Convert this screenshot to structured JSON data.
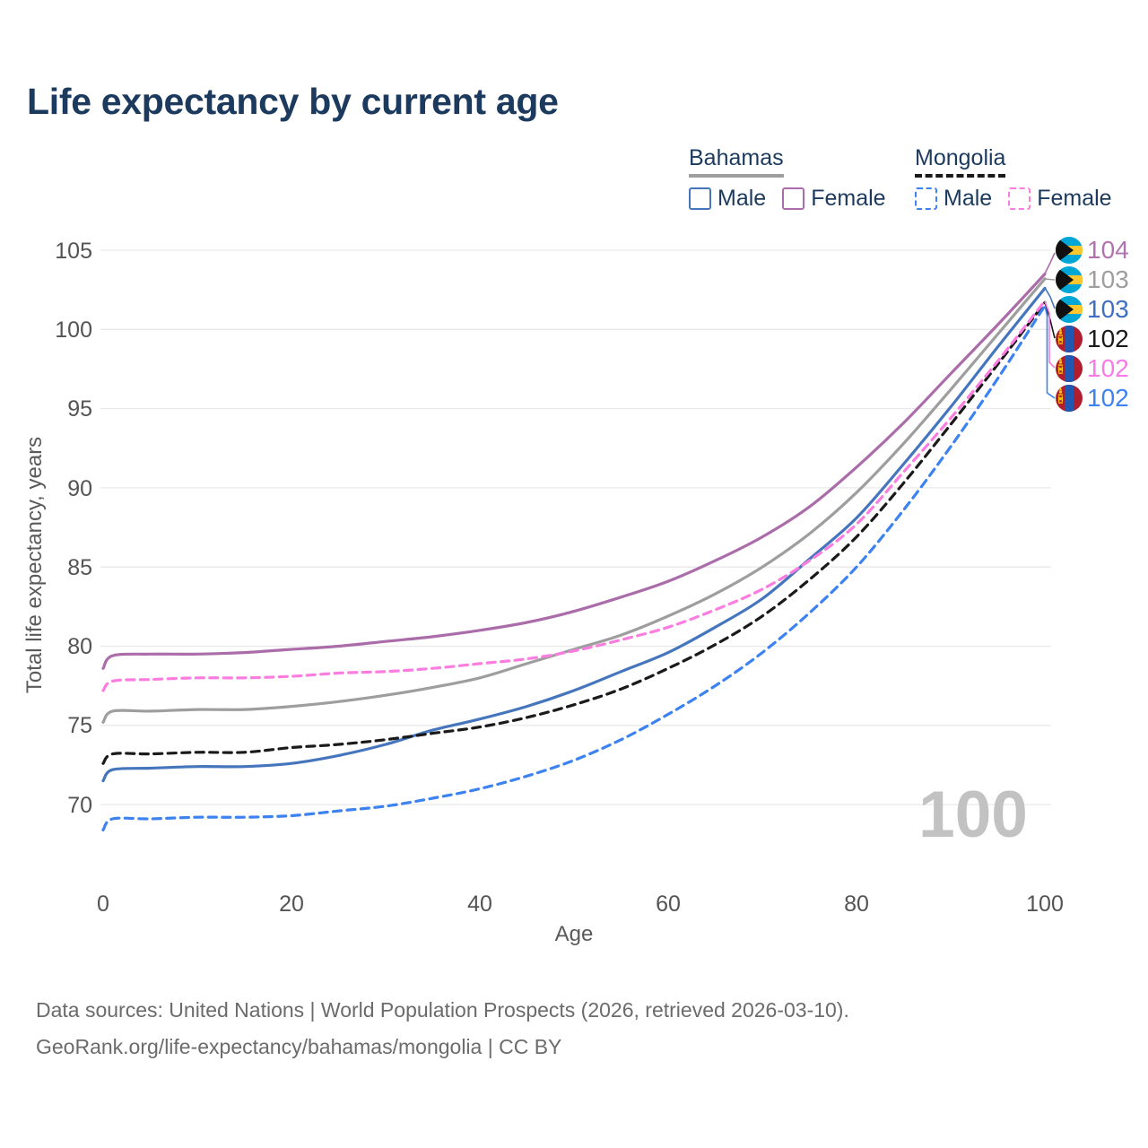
{
  "title": "Life expectancy by current age",
  "legend": {
    "groups": [
      {
        "country": "Bahamas",
        "line_style": "solid",
        "line_color": "#9e9e9e",
        "items": [
          {
            "label": "Male",
            "color": "#4576bd"
          },
          {
            "label": "Female",
            "color": "#ab6caa"
          }
        ]
      },
      {
        "country": "Mongolia",
        "line_style": "dashed",
        "line_color": "#1a1a1a",
        "items": [
          {
            "label": "Male",
            "color": "#3c82f0"
          },
          {
            "label": "Female",
            "color": "#fb7de0"
          }
        ]
      }
    ]
  },
  "chart_data": {
    "type": "line",
    "title": "Life expectancy by current age",
    "xlabel": "Age",
    "ylabel": "Total life expectancy, years",
    "x_ticks": [
      0,
      20,
      40,
      60,
      80,
      100
    ],
    "y_ticks": [
      105,
      100,
      95,
      90,
      85,
      80,
      75,
      70
    ],
    "xlim": [
      0,
      100
    ],
    "ylim": [
      67,
      106
    ],
    "grid": "horizontal",
    "watermark": "100",
    "ages": [
      0,
      1,
      5,
      10,
      15,
      20,
      25,
      30,
      35,
      40,
      45,
      50,
      55,
      60,
      65,
      70,
      75,
      80,
      85,
      90,
      95,
      100
    ],
    "series": [
      {
        "id": "bahamas-female",
        "country": "Bahamas",
        "sex": "Female",
        "color": "#ab6caa",
        "dash": false,
        "values": [
          78.6,
          79.4,
          79.5,
          79.5,
          79.6,
          79.8,
          80.0,
          80.3,
          80.6,
          81.0,
          81.5,
          82.2,
          83.1,
          84.1,
          85.4,
          86.9,
          88.8,
          91.3,
          94.1,
          97.2,
          100.3,
          103.5
        ]
      },
      {
        "id": "bahamas-total",
        "country": "Bahamas",
        "sex": "Both",
        "color": "#9e9e9e",
        "dash": false,
        "values": [
          75.2,
          75.9,
          75.9,
          76.0,
          76.0,
          76.2,
          76.5,
          76.9,
          77.4,
          78.0,
          78.9,
          79.8,
          80.7,
          81.9,
          83.3,
          85.0,
          87.1,
          89.7,
          92.8,
          96.2,
          99.7,
          103.2
        ]
      },
      {
        "id": "bahamas-male",
        "country": "Bahamas",
        "sex": "Male",
        "color": "#4576bd",
        "dash": false,
        "values": [
          71.5,
          72.2,
          72.3,
          72.4,
          72.4,
          72.6,
          73.1,
          73.8,
          74.7,
          75.4,
          76.2,
          77.2,
          78.4,
          79.6,
          81.2,
          83.0,
          85.5,
          88.1,
          91.5,
          95.1,
          98.9,
          102.6
        ]
      },
      {
        "id": "mongolia-total",
        "country": "Mongolia",
        "sex": "Both",
        "color": "#1a1a1a",
        "dash": true,
        "values": [
          72.6,
          73.2,
          73.2,
          73.3,
          73.3,
          73.6,
          73.8,
          74.1,
          74.5,
          74.9,
          75.5,
          76.3,
          77.3,
          78.6,
          80.1,
          81.9,
          84.2,
          86.9,
          90.3,
          94.0,
          97.8,
          101.7
        ]
      },
      {
        "id": "mongolia-female",
        "country": "Mongolia",
        "sex": "Female",
        "color": "#fb7de0",
        "dash": true,
        "values": [
          77.2,
          77.8,
          77.9,
          78.0,
          78.0,
          78.1,
          78.3,
          78.4,
          78.6,
          78.9,
          79.2,
          79.7,
          80.4,
          81.2,
          82.3,
          83.6,
          85.4,
          87.7,
          91.0,
          94.4,
          98.0,
          101.8
        ]
      },
      {
        "id": "mongolia-male",
        "country": "Mongolia",
        "sex": "Male",
        "color": "#3c82f0",
        "dash": true,
        "values": [
          68.4,
          69.1,
          69.1,
          69.2,
          69.2,
          69.3,
          69.6,
          69.9,
          70.4,
          71.0,
          71.8,
          72.8,
          74.1,
          75.7,
          77.5,
          79.6,
          82.1,
          85.0,
          88.6,
          92.6,
          96.9,
          101.5
        ]
      }
    ],
    "end_labels": [
      {
        "flag": "bahamas",
        "value": 104,
        "color": "#b272ae"
      },
      {
        "flag": "bahamas",
        "value": 103,
        "color": "#9e9e9e"
      },
      {
        "flag": "bahamas",
        "value": 103,
        "color": "#3f6fc4"
      },
      {
        "flag": "mongolia",
        "value": 102,
        "color": "#1a1a1a"
      },
      {
        "flag": "mongolia",
        "value": 102,
        "color": "#f87ae8"
      },
      {
        "flag": "mongolia",
        "value": 102,
        "color": "#3c82f0"
      }
    ]
  },
  "footer": {
    "line1": "Data sources: United Nations | World Population Prospects (2026, retrieved 2026-03-10).",
    "line2": "GeoRank.org/life-expectancy/bahamas/mongolia | CC BY"
  }
}
